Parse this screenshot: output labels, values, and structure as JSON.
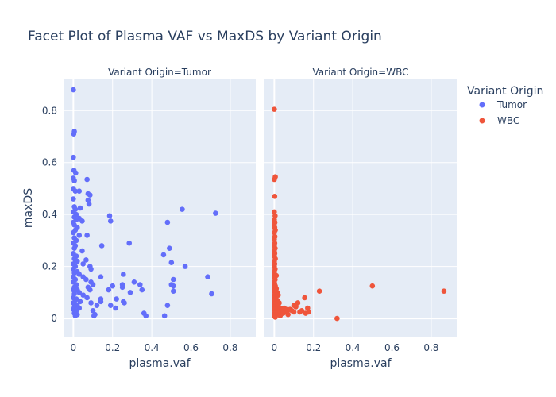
{
  "chart_data": {
    "type": "scatter",
    "title": "Facet Plot of Plasma VAF vs MaxDS by Variant Origin",
    "facet_labels": [
      "Variant Origin=Tumor",
      "Variant Origin=WBC"
    ],
    "xlabel": "plasma.vaf",
    "ylabel": "maxDS",
    "xlim": [
      -0.05,
      0.93
    ],
    "ylim": [
      -0.07,
      0.92
    ],
    "x_ticks": [
      0,
      0.2,
      0.4,
      0.6,
      0.8
    ],
    "x_tick_labels": [
      "0",
      "0.2",
      "0.4",
      "0.6",
      "0.8"
    ],
    "y_ticks": [
      0,
      0.2,
      0.4,
      0.6,
      0.8
    ],
    "y_tick_labels": [
      "0",
      "0.2",
      "0.4",
      "0.6",
      "0.8"
    ],
    "grid": true,
    "legend_title": "Variant Origin",
    "legend_placement": "top-right",
    "series": [
      {
        "name": "Tumor",
        "facet": 0,
        "color": "#636efa",
        "points": [
          [
            0.0,
            0.88
          ],
          [
            0.005,
            0.72
          ],
          [
            0.002,
            0.71
          ],
          [
            0.0,
            0.62
          ],
          [
            0.003,
            0.57
          ],
          [
            0.012,
            0.56
          ],
          [
            0.0,
            0.54
          ],
          [
            0.005,
            0.53
          ],
          [
            0.07,
            0.535
          ],
          [
            0.0,
            0.5
          ],
          [
            0.01,
            0.49
          ],
          [
            0.03,
            0.49
          ],
          [
            0.075,
            0.48
          ],
          [
            0.085,
            0.475
          ],
          [
            0.0,
            0.46
          ],
          [
            0.075,
            0.455
          ],
          [
            0.08,
            0.44
          ],
          [
            0.005,
            0.43
          ],
          [
            0.035,
            0.425
          ],
          [
            0.01,
            0.42
          ],
          [
            0.0,
            0.41
          ],
          [
            0.015,
            0.4
          ],
          [
            0.005,
            0.39
          ],
          [
            0.03,
            0.385
          ],
          [
            0.015,
            0.38
          ],
          [
            0.045,
            0.375
          ],
          [
            0.0,
            0.37
          ],
          [
            0.005,
            0.36
          ],
          [
            0.02,
            0.35
          ],
          [
            0.01,
            0.34
          ],
          [
            0.0,
            0.33
          ],
          [
            0.03,
            0.32
          ],
          [
            0.07,
            0.32
          ],
          [
            0.005,
            0.31
          ],
          [
            0.015,
            0.3
          ],
          [
            0.0,
            0.29
          ],
          [
            0.01,
            0.28
          ],
          [
            0.005,
            0.27
          ],
          [
            0.045,
            0.26
          ],
          [
            0.0,
            0.25
          ],
          [
            0.015,
            0.24
          ],
          [
            0.005,
            0.23
          ],
          [
            0.01,
            0.225
          ],
          [
            0.065,
            0.225
          ],
          [
            0.02,
            0.22
          ],
          [
            0.0,
            0.21
          ],
          [
            0.01,
            0.2
          ],
          [
            0.085,
            0.2
          ],
          [
            0.05,
            0.21
          ],
          [
            0.09,
            0.19
          ],
          [
            0.0,
            0.19
          ],
          [
            0.02,
            0.18
          ],
          [
            0.005,
            0.175
          ],
          [
            0.03,
            0.17
          ],
          [
            0.0,
            0.16
          ],
          [
            0.05,
            0.16
          ],
          [
            0.01,
            0.15
          ],
          [
            0.065,
            0.15
          ],
          [
            0.0,
            0.14
          ],
          [
            0.09,
            0.14
          ],
          [
            0.015,
            0.13
          ],
          [
            0.1,
            0.13
          ],
          [
            0.005,
            0.12
          ],
          [
            0.075,
            0.12
          ],
          [
            0.0,
            0.11
          ],
          [
            0.02,
            0.11
          ],
          [
            0.085,
            0.11
          ],
          [
            0.03,
            0.1
          ],
          [
            0.005,
            0.095
          ],
          [
            0.05,
            0.09
          ],
          [
            0.0,
            0.08
          ],
          [
            0.015,
            0.075
          ],
          [
            0.07,
            0.08
          ],
          [
            0.01,
            0.07
          ],
          [
            0.035,
            0.065
          ],
          [
            0.0,
            0.06
          ],
          [
            0.02,
            0.05
          ],
          [
            0.005,
            0.045
          ],
          [
            0.03,
            0.04
          ],
          [
            0.0,
            0.035
          ],
          [
            0.015,
            0.03
          ],
          [
            0.005,
            0.02
          ],
          [
            0.02,
            0.015
          ],
          [
            0.01,
            0.01
          ],
          [
            0.09,
            0.06
          ],
          [
            0.1,
            0.03
          ],
          [
            0.11,
            0.015
          ],
          [
            0.12,
            0.05
          ],
          [
            0.105,
            0.01
          ],
          [
            0.14,
            0.16
          ],
          [
            0.145,
            0.28
          ],
          [
            0.14,
            0.075
          ],
          [
            0.14,
            0.065
          ],
          [
            0.185,
            0.395
          ],
          [
            0.19,
            0.375
          ],
          [
            0.18,
            0.11
          ],
          [
            0.19,
            0.05
          ],
          [
            0.2,
            0.125
          ],
          [
            0.22,
            0.075
          ],
          [
            0.215,
            0.04
          ],
          [
            0.25,
            0.13
          ],
          [
            0.255,
            0.17
          ],
          [
            0.25,
            0.12
          ],
          [
            0.255,
            0.065
          ],
          [
            0.26,
            0.06
          ],
          [
            0.285,
            0.29
          ],
          [
            0.29,
            0.1
          ],
          [
            0.31,
            0.14
          ],
          [
            0.34,
            0.13
          ],
          [
            0.35,
            0.11
          ],
          [
            0.36,
            0.02
          ],
          [
            0.37,
            0.01
          ],
          [
            0.46,
            0.245
          ],
          [
            0.48,
            0.37
          ],
          [
            0.49,
            0.27
          ],
          [
            0.5,
            0.215
          ],
          [
            0.5,
            0.13
          ],
          [
            0.51,
            0.15
          ],
          [
            0.51,
            0.125
          ],
          [
            0.51,
            0.105
          ],
          [
            0.48,
            0.05
          ],
          [
            0.465,
            0.01
          ],
          [
            0.555,
            0.42
          ],
          [
            0.57,
            0.2
          ],
          [
            0.685,
            0.16
          ],
          [
            0.705,
            0.095
          ],
          [
            0.725,
            0.405
          ]
        ]
      },
      {
        "name": "WBC",
        "facet": 1,
        "color": "#ef553b",
        "points": [
          [
            0.0,
            0.805
          ],
          [
            0.005,
            0.545
          ],
          [
            0.0,
            0.535
          ],
          [
            0.002,
            0.47
          ],
          [
            0.0,
            0.41
          ],
          [
            0.004,
            0.395
          ],
          [
            0.0,
            0.38
          ],
          [
            0.003,
            0.37
          ],
          [
            0.0,
            0.36
          ],
          [
            0.002,
            0.35
          ],
          [
            0.005,
            0.34
          ],
          [
            0.0,
            0.33
          ],
          [
            0.003,
            0.315
          ],
          [
            0.0,
            0.305
          ],
          [
            0.002,
            0.29
          ],
          [
            0.0,
            0.28
          ],
          [
            0.004,
            0.27
          ],
          [
            0.0,
            0.26
          ],
          [
            0.002,
            0.25
          ],
          [
            0.0,
            0.24
          ],
          [
            0.005,
            0.23
          ],
          [
            0.0,
            0.22
          ],
          [
            0.002,
            0.21
          ],
          [
            0.0,
            0.2
          ],
          [
            0.004,
            0.19
          ],
          [
            0.0,
            0.18
          ],
          [
            0.002,
            0.17
          ],
          [
            0.01,
            0.165
          ],
          [
            0.0,
            0.16
          ],
          [
            0.004,
            0.15
          ],
          [
            0.0,
            0.14
          ],
          [
            0.002,
            0.13
          ],
          [
            0.005,
            0.125
          ],
          [
            0.0,
            0.12
          ],
          [
            0.01,
            0.115
          ],
          [
            0.003,
            0.11
          ],
          [
            0.0,
            0.105
          ],
          [
            0.015,
            0.1
          ],
          [
            0.005,
            0.095
          ],
          [
            0.0,
            0.09
          ],
          [
            0.02,
            0.09
          ],
          [
            0.01,
            0.085
          ],
          [
            0.0,
            0.08
          ],
          [
            0.005,
            0.075
          ],
          [
            0.015,
            0.07
          ],
          [
            0.0,
            0.065
          ],
          [
            0.01,
            0.06
          ],
          [
            0.025,
            0.06
          ],
          [
            0.0,
            0.055
          ],
          [
            0.005,
            0.05
          ],
          [
            0.02,
            0.05
          ],
          [
            0.0,
            0.045
          ],
          [
            0.01,
            0.04
          ],
          [
            0.03,
            0.04
          ],
          [
            0.0,
            0.035
          ],
          [
            0.015,
            0.03
          ],
          [
            0.005,
            0.025
          ],
          [
            0.0,
            0.02
          ],
          [
            0.02,
            0.02
          ],
          [
            0.01,
            0.015
          ],
          [
            0.0,
            0.01
          ],
          [
            0.005,
            0.005
          ],
          [
            0.03,
            0.01
          ],
          [
            0.04,
            0.03
          ],
          [
            0.045,
            0.02
          ],
          [
            0.05,
            0.04
          ],
          [
            0.06,
            0.035
          ],
          [
            0.065,
            0.025
          ],
          [
            0.07,
            0.015
          ],
          [
            0.08,
            0.035
          ],
          [
            0.09,
            0.03
          ],
          [
            0.1,
            0.05
          ],
          [
            0.11,
            0.045
          ],
          [
            0.1,
            0.025
          ],
          [
            0.12,
            0.06
          ],
          [
            0.13,
            0.025
          ],
          [
            0.14,
            0.03
          ],
          [
            0.155,
            0.08
          ],
          [
            0.16,
            0.02
          ],
          [
            0.17,
            0.04
          ],
          [
            0.175,
            0.025
          ],
          [
            0.23,
            0.105
          ],
          [
            0.32,
            0.0
          ],
          [
            0.5,
            0.125
          ],
          [
            0.865,
            0.105
          ]
        ]
      }
    ]
  }
}
